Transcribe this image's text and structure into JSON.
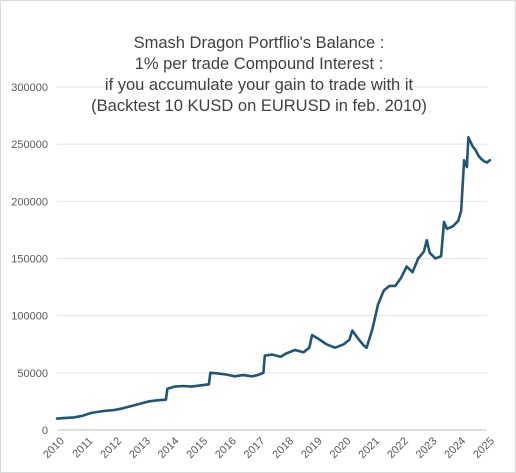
{
  "chart_data": {
    "type": "line",
    "title_lines": [
      "Smash Dragon Portflio's Balance :",
      "1% per trade Compound Interest :",
      "if you accumulate your gain to trade with it",
      "(Backtest 10 KUSD on EURUSD in feb. 2010)"
    ],
    "xlabel": "",
    "ylabel": "",
    "xlim": [
      2010,
      2025
    ],
    "ylim": [
      0,
      300000
    ],
    "y_ticks": [
      0,
      50000,
      100000,
      150000,
      200000,
      250000,
      300000
    ],
    "y_tick_labels": [
      "0",
      "50000",
      "100000",
      "150000",
      "200000",
      "250000",
      "300000"
    ],
    "x_ticks": [
      2010,
      2011,
      2012,
      2013,
      2014,
      2015,
      2016,
      2017,
      2018,
      2019,
      2020,
      2021,
      2022,
      2023,
      2024,
      2025
    ],
    "x_tick_labels": [
      "2010",
      "2011",
      "2012",
      "2013",
      "2014",
      "2015",
      "2016",
      "2017",
      "2018",
      "2019",
      "2020",
      "2021",
      "2022",
      "2023",
      "2024",
      "2025"
    ],
    "grid": true,
    "legend": "none",
    "series": [
      {
        "color": "#1f5674",
        "x": [
          2010.0,
          2010.3,
          2010.6,
          2010.9,
          2011.2,
          2011.6,
          2012.0,
          2012.3,
          2012.6,
          2012.9,
          2013.2,
          2013.5,
          2013.8,
          2013.85,
          2014.1,
          2014.4,
          2014.7,
          2015.0,
          2015.3,
          2015.35,
          2015.6,
          2015.9,
          2016.2,
          2016.5,
          2016.8,
          2017.0,
          2017.2,
          2017.25,
          2017.5,
          2017.8,
          2018.0,
          2018.3,
          2018.6,
          2018.8,
          2018.9,
          2019.1,
          2019.4,
          2019.7,
          2020.0,
          2020.2,
          2020.3,
          2020.5,
          2020.7,
          2020.8,
          2021.0,
          2021.2,
          2021.4,
          2021.6,
          2021.8,
          2022.0,
          2022.2,
          2022.4,
          2022.6,
          2022.8,
          2022.9,
          2023.0,
          2023.2,
          2023.4,
          2023.5,
          2023.6,
          2023.8,
          2024.0,
          2024.1,
          2024.2,
          2024.3,
          2024.35,
          2024.5,
          2024.6,
          2024.7,
          2024.8,
          2024.9,
          2025.0,
          2025.1
        ],
        "values": [
          10000,
          10600,
          11000,
          12500,
          15000,
          16500,
          17500,
          19000,
          21000,
          23000,
          25000,
          26000,
          26500,
          36000,
          38000,
          38500,
          38000,
          39000,
          40000,
          50000,
          49500,
          48500,
          47000,
          48000,
          47000,
          48000,
          50000,
          65000,
          66000,
          64000,
          67000,
          70000,
          68000,
          72000,
          83000,
          80000,
          75000,
          72000,
          75000,
          79000,
          87000,
          80000,
          74000,
          72000,
          88000,
          110000,
          122000,
          126000,
          126000,
          133000,
          143000,
          138000,
          150000,
          156000,
          166000,
          155000,
          150000,
          152000,
          182000,
          176000,
          178000,
          183000,
          192000,
          236000,
          230000,
          256000,
          248000,
          245000,
          240000,
          237000,
          235000,
          234000,
          236000
        ]
      }
    ]
  }
}
